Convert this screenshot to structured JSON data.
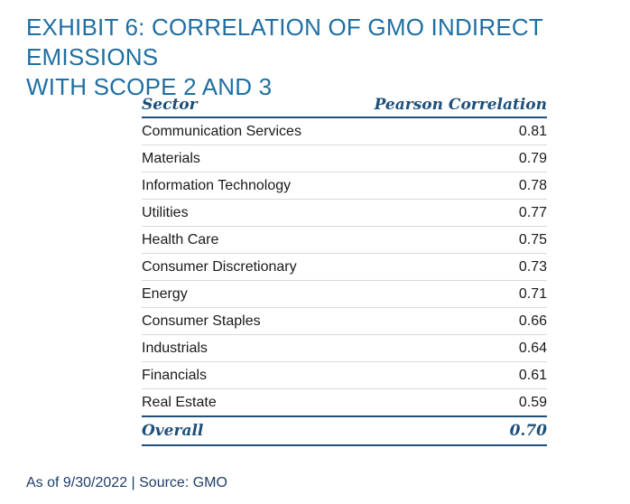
{
  "exhibit": {
    "title": "EXHIBIT 6: CORRELATION OF GMO INDIRECT EMISSIONS\nWITH SCOPE 2 AND 3"
  },
  "table": {
    "headers": {
      "sector": "Sector",
      "correlation": "Pearson Correlation"
    },
    "rows": [
      {
        "sector": "Communication Services",
        "correlation": "0.81"
      },
      {
        "sector": "Materials",
        "correlation": "0.79"
      },
      {
        "sector": "Information Technology",
        "correlation": "0.78"
      },
      {
        "sector": "Utilities",
        "correlation": "0.77"
      },
      {
        "sector": "Health Care",
        "correlation": "0.75"
      },
      {
        "sector": "Consumer Discretionary",
        "correlation": "0.73"
      },
      {
        "sector": "Energy",
        "correlation": "0.71"
      },
      {
        "sector": "Consumer Staples",
        "correlation": "0.66"
      },
      {
        "sector": "Industrials",
        "correlation": "0.64"
      },
      {
        "sector": "Financials",
        "correlation": "0.61"
      },
      {
        "sector": "Real Estate",
        "correlation": "0.59"
      }
    ],
    "overall": {
      "label": "Overall",
      "correlation": "0.70"
    }
  },
  "footnote": "As of 9/30/2022 | Source: GMO",
  "colors": {
    "title": "#1f6fa3",
    "header": "#1d4f7a",
    "rule": "#1d4f7a",
    "row_divider": "#d6dbe0",
    "body_text": "#1a1a1a",
    "footnote": "#1d3f66"
  }
}
